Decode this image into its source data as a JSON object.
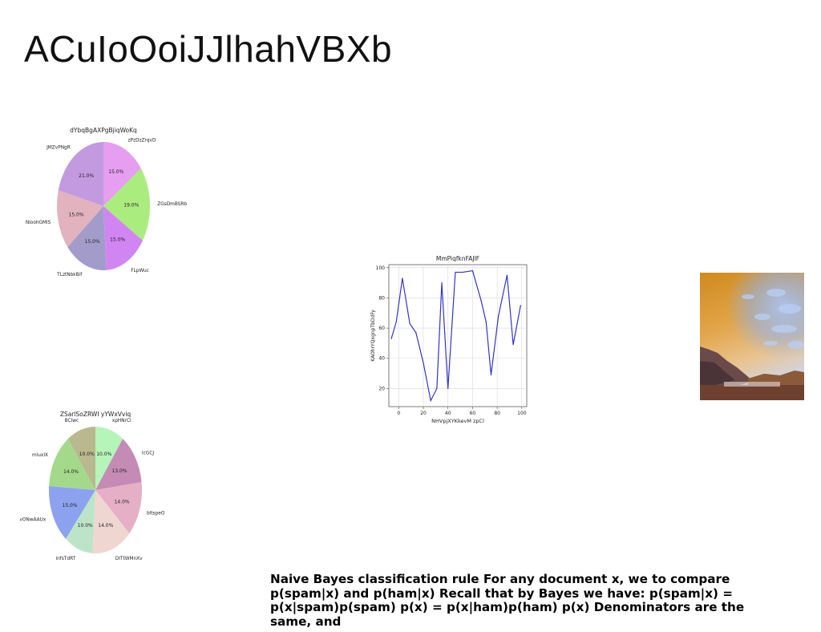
{
  "slide": {
    "title": "ACuIoOoiJJlhahVBXb",
    "paragraph": "Naive Bayes classification rule For any document x, we to compare p(spam|x) and p(ham|x) Recall that by Bayes we have: p(spam|x) = p(x|spam)p(spam) p(x) = p(x|ham)p(ham) p(x) Denominators are the same, and"
  },
  "chart_data": [
    {
      "type": "pie",
      "title": "dYbqBgAXPgBjiqWoKq",
      "slices": [
        {
          "label": "zPzDzZrqvD",
          "value": 15.0,
          "color": "#e59ef0"
        },
        {
          "label": "ZGsDmBSRb",
          "value": 19.0,
          "color": "#abec7e"
        },
        {
          "label": "FLpWuc",
          "value": 15.0,
          "color": "#d185f2"
        },
        {
          "label": "TLztNbkBif",
          "value": 15.0,
          "color": "#a39cca"
        },
        {
          "label": "NloohGMlS",
          "value": 15.0,
          "color": "#e2b2be"
        },
        {
          "label": "JMZvPNgR",
          "value": 21.0,
          "color": "#c39ae0"
        }
      ],
      "value_labels": [
        "15.0%",
        "19.0%",
        "15.0%",
        "15.0%",
        "15.0%",
        "21.0%"
      ]
    },
    {
      "type": "line",
      "title": "MmPiqfknFAJIF",
      "xlabel": "NHVpjXYKkevM zpCl",
      "ylabel": "KAOhrYQxgnpTbDdFy",
      "xlim": [
        -8,
        104
      ],
      "ylim": [
        8,
        102
      ],
      "xticks": [
        0,
        20,
        40,
        60,
        80,
        100
      ],
      "yticks": [
        20,
        40,
        60,
        80,
        100
      ],
      "grid": true,
      "color": "#3333cc",
      "x": [
        -6,
        -2,
        3,
        9,
        14,
        20,
        26,
        31,
        35,
        40,
        46,
        52,
        60,
        67,
        71,
        75,
        81,
        88,
        93,
        99
      ],
      "y": [
        53,
        64,
        93,
        63,
        57,
        37,
        12,
        20,
        90,
        20,
        97,
        97,
        98,
        78,
        64,
        29,
        68,
        95,
        49,
        75
      ]
    },
    {
      "type": "pie",
      "title": "ZSarlSoZRWI yYWxVviq",
      "slices": [
        {
          "label": "xpHNrCl",
          "value": 10.0,
          "color": "#b5f5b9"
        },
        {
          "label": "IcGCJ",
          "value": 13.0,
          "color": "#c48bb4"
        },
        {
          "label": "bltspeO",
          "value": 14.0,
          "color": "#e5b0c6"
        },
        {
          "label": "DITtWMnXv",
          "value": 14.0,
          "color": "#efd6d1"
        },
        {
          "label": "infsTdRT",
          "value": 10.0,
          "color": "#bde4c8"
        },
        {
          "label": "gvONwAAUx",
          "value": 15.0,
          "color": "#8da2ef"
        },
        {
          "label": "mluxIX",
          "value": 14.0,
          "color": "#a4d98c"
        },
        {
          "label": "BCIwc",
          "value": 10.0,
          "color": "#b9b88f"
        }
      ],
      "value_labels": [
        "10.0%",
        "13.0%",
        "14.0%",
        "14.0%",
        "10.0%",
        "15.0%",
        "14.0%",
        "10.0%"
      ]
    }
  ],
  "image": {
    "subject": "mountain-sunset-photo"
  }
}
